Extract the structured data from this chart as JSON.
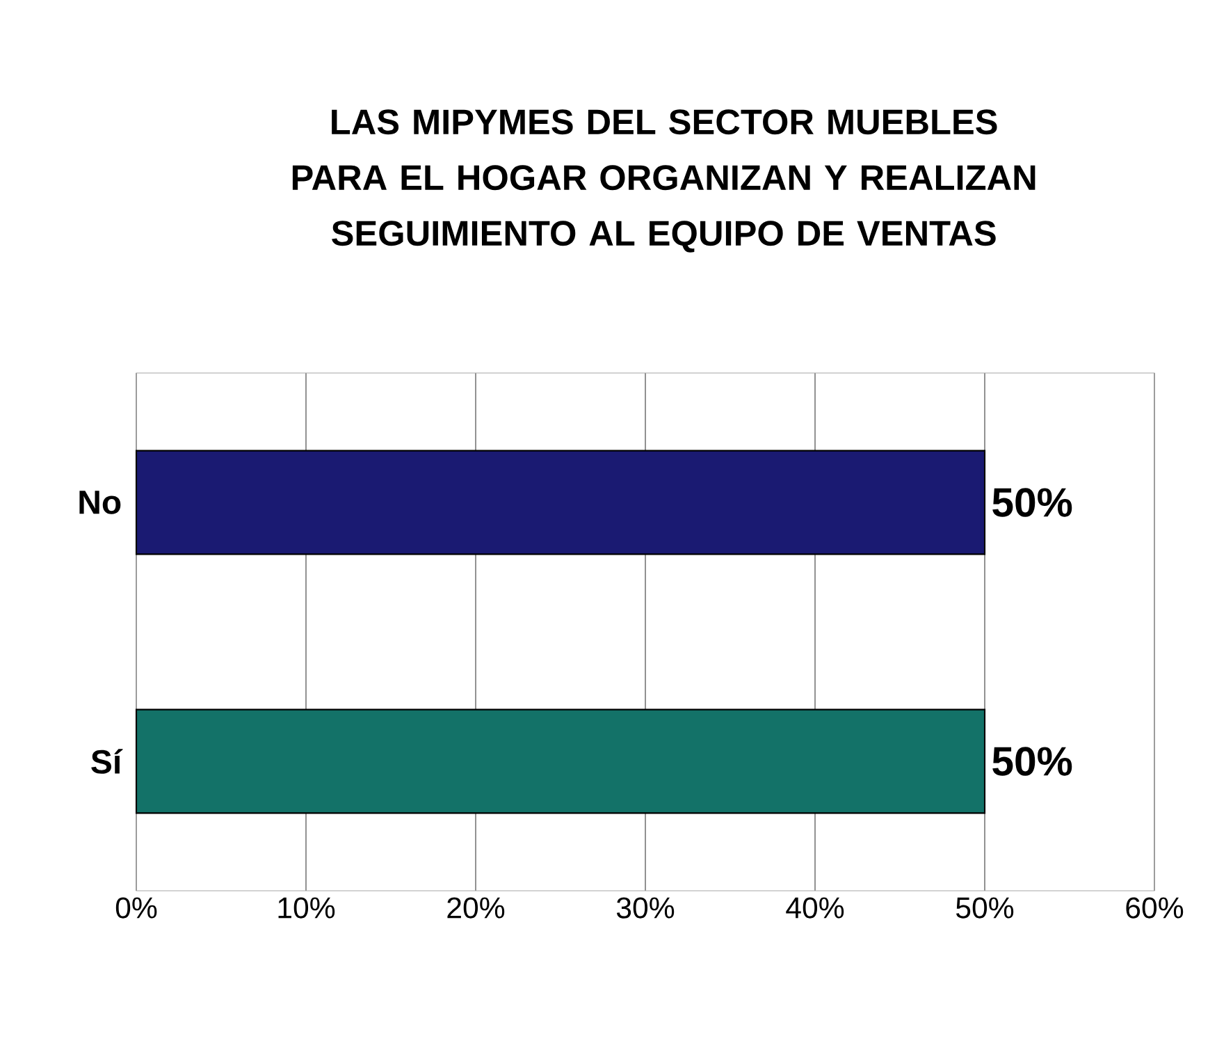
{
  "chart_data": {
    "type": "bar",
    "orientation": "horizontal",
    "title": "LAS MIPYMES DEL SECTOR MUEBLES PARA EL HOGAR ORGANIZAN Y REALIZAN SEGUIMIENTO AL EQUIPO DE VENTAS",
    "categories": [
      "No",
      "Sí"
    ],
    "values": [
      50,
      50
    ],
    "colors": [
      "#1a1a72",
      "#137268"
    ],
    "value_labels": [
      "50%",
      "50%"
    ],
    "xlim": [
      0,
      60
    ],
    "xticks": [
      {
        "value": 0,
        "label": "0%"
      },
      {
        "value": 10,
        "label": "10%"
      },
      {
        "value": 20,
        "label": "20%"
      },
      {
        "value": 30,
        "label": "30%"
      },
      {
        "value": 40,
        "label": "40%"
      },
      {
        "value": 50,
        "label": "50%"
      },
      {
        "value": 60,
        "label": "60%"
      }
    ],
    "grid": "x"
  }
}
